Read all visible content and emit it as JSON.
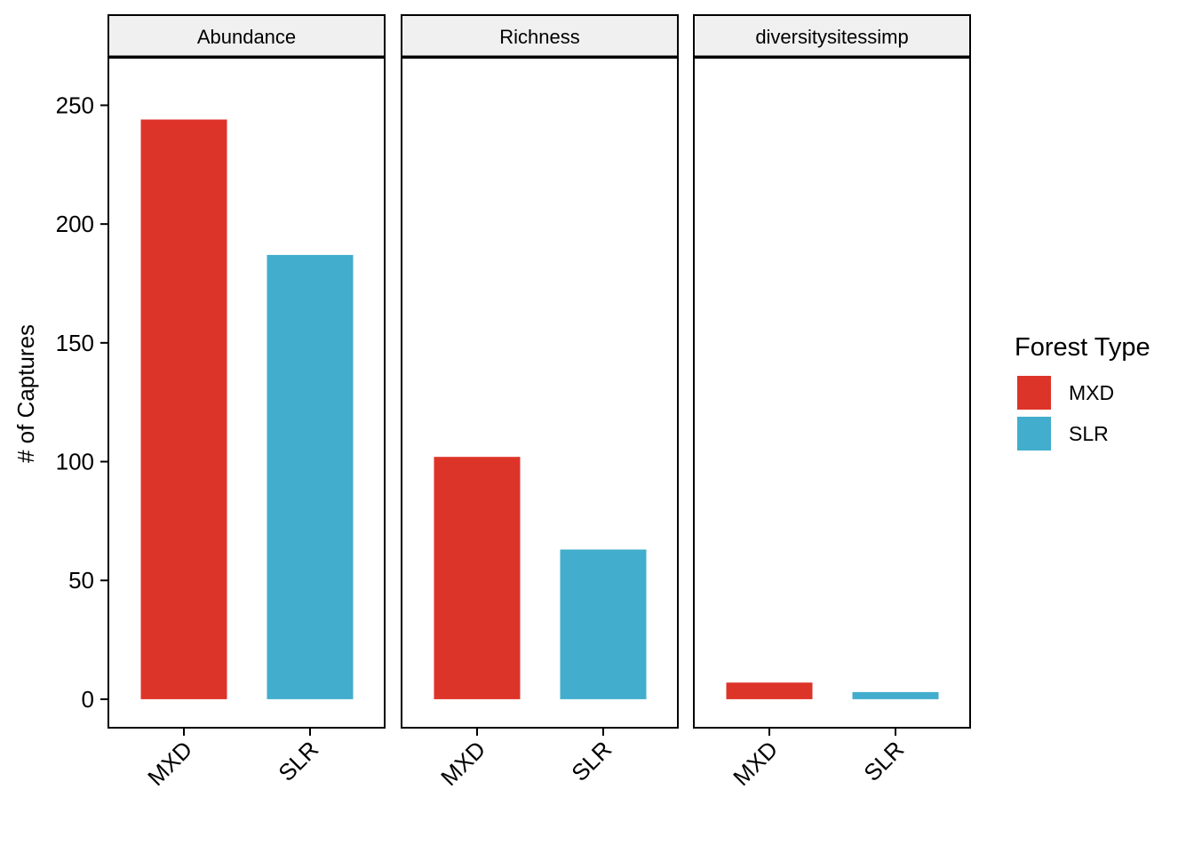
{
  "chart_data": {
    "type": "bar",
    "title": "",
    "xlabel": "",
    "ylabel": "# of Captures",
    "ylim": [
      -12,
      270
    ],
    "y_ticks": [
      0,
      50,
      100,
      150,
      200,
      250
    ],
    "categories": [
      "MXD",
      "SLR"
    ],
    "category_colors": {
      "MXD": "#dd3429",
      "SLR": "#42adcc"
    },
    "facets": [
      {
        "label": "Abundance",
        "values": [
          244,
          187
        ]
      },
      {
        "label": "Richness",
        "values": [
          102,
          63
        ]
      },
      {
        "label": "diversitysitessimp",
        "values": [
          7,
          3
        ]
      }
    ],
    "legend": {
      "title": "Forest Type",
      "position": "right",
      "entries": [
        "MXD",
        "SLR"
      ]
    },
    "grid": false
  }
}
